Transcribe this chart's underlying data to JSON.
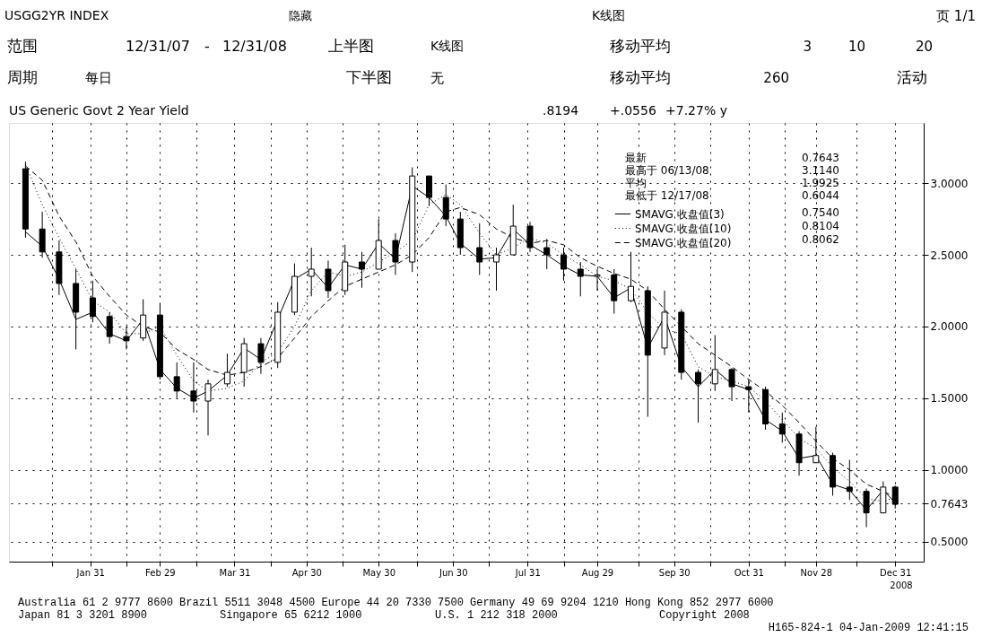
{
  "chart_data": {
    "type": "candlestick",
    "title": "US Generic Govt 2 Year Yield",
    "x": [
      "2008-01-04",
      "2008-01-11",
      "2008-01-18",
      "2008-01-25",
      "2008-02-01",
      "2008-02-08",
      "2008-02-15",
      "2008-02-22",
      "2008-02-29",
      "2008-03-07",
      "2008-03-14",
      "2008-03-20",
      "2008-03-28",
      "2008-04-04",
      "2008-04-11",
      "2008-04-18",
      "2008-04-25",
      "2008-05-02",
      "2008-05-09",
      "2008-05-16",
      "2008-05-23",
      "2008-05-30",
      "2008-06-06",
      "2008-06-13",
      "2008-06-20",
      "2008-06-27",
      "2008-07-03",
      "2008-07-11",
      "2008-07-18",
      "2008-07-25",
      "2008-08-01",
      "2008-08-08",
      "2008-08-15",
      "2008-08-22",
      "2008-08-29",
      "2008-09-05",
      "2008-09-12",
      "2008-09-19",
      "2008-09-26",
      "2008-10-03",
      "2008-10-10",
      "2008-10-17",
      "2008-10-24",
      "2008-10-31",
      "2008-11-07",
      "2008-11-14",
      "2008-11-21",
      "2008-11-28",
      "2008-12-05",
      "2008-12-12",
      "2008-12-19",
      "2008-12-26",
      "2008-12-31"
    ],
    "ohlc": [
      [
        3.1,
        3.15,
        2.62,
        2.68
      ],
      [
        2.68,
        2.8,
        2.48,
        2.52
      ],
      [
        2.52,
        2.6,
        2.22,
        2.3
      ],
      [
        2.3,
        2.4,
        1.84,
        2.1
      ],
      [
        2.2,
        2.32,
        2.03,
        2.07
      ],
      [
        2.07,
        2.1,
        1.88,
        1.93
      ],
      [
        1.93,
        2.0,
        1.84,
        1.9
      ],
      [
        1.92,
        2.19,
        1.9,
        2.08
      ],
      [
        2.08,
        2.16,
        1.63,
        1.65
      ],
      [
        1.65,
        1.75,
        1.5,
        1.55
      ],
      [
        1.55,
        1.75,
        1.4,
        1.48
      ],
      [
        1.48,
        1.63,
        1.24,
        1.6
      ],
      [
        1.6,
        1.81,
        1.58,
        1.68
      ],
      [
        1.68,
        1.92,
        1.58,
        1.88
      ],
      [
        1.88,
        1.92,
        1.67,
        1.75
      ],
      [
        1.75,
        2.17,
        1.71,
        2.1
      ],
      [
        2.1,
        2.44,
        2.08,
        2.35
      ],
      [
        2.35,
        2.55,
        2.21,
        2.4
      ],
      [
        2.4,
        2.46,
        2.2,
        2.25
      ],
      [
        2.25,
        2.57,
        2.22,
        2.45
      ],
      [
        2.45,
        2.52,
        2.27,
        2.4
      ],
      [
        2.4,
        2.75,
        2.4,
        2.6
      ],
      [
        2.6,
        2.65,
        2.36,
        2.45
      ],
      [
        2.45,
        3.11,
        2.38,
        3.05
      ],
      [
        3.05,
        3.05,
        2.84,
        2.9
      ],
      [
        2.9,
        2.99,
        2.7,
        2.75
      ],
      [
        2.75,
        2.8,
        2.5,
        2.55
      ],
      [
        2.55,
        2.72,
        2.36,
        2.45
      ],
      [
        2.45,
        2.55,
        2.25,
        2.5
      ],
      [
        2.5,
        2.85,
        2.5,
        2.7
      ],
      [
        2.7,
        2.73,
        2.52,
        2.55
      ],
      [
        2.55,
        2.61,
        2.4,
        2.5
      ],
      [
        2.5,
        2.55,
        2.32,
        2.4
      ],
      [
        2.4,
        2.45,
        2.21,
        2.35
      ],
      [
        2.35,
        2.4,
        2.25,
        2.36
      ],
      [
        2.36,
        2.4,
        2.09,
        2.18
      ],
      [
        2.18,
        2.52,
        2.17,
        2.28
      ],
      [
        2.25,
        2.28,
        1.37,
        1.8
      ],
      [
        1.85,
        2.25,
        1.8,
        2.1
      ],
      [
        2.1,
        2.12,
        1.63,
        1.68
      ],
      [
        1.68,
        1.7,
        1.33,
        1.6
      ],
      [
        1.6,
        1.94,
        1.55,
        1.7
      ],
      [
        1.7,
        1.71,
        1.48,
        1.58
      ],
      [
        1.58,
        1.63,
        1.4,
        1.56
      ],
      [
        1.56,
        1.58,
        1.28,
        1.32
      ],
      [
        1.32,
        1.4,
        1.19,
        1.25
      ],
      [
        1.25,
        1.27,
        0.96,
        1.05
      ],
      [
        1.05,
        1.3,
        1.05,
        1.1
      ],
      [
        1.1,
        1.12,
        0.82,
        0.88
      ],
      [
        0.88,
        1.07,
        0.79,
        0.85
      ],
      [
        0.85,
        0.87,
        0.6,
        0.7
      ],
      [
        0.7,
        0.92,
        0.7,
        0.88
      ],
      [
        0.88,
        0.89,
        0.73,
        0.76
      ]
    ],
    "color": "#000000",
    "series": [
      {
        "name": "SMAVG 收盘值(3)",
        "type": "line",
        "color": "#000000",
        "line_style": "solid",
        "values": [
          2.66,
          2.56,
          2.33,
          2.05,
          2.1,
          1.95,
          1.9,
          2.05,
          1.7,
          1.57,
          1.5,
          1.55,
          1.66,
          1.85,
          1.77,
          2.05,
          2.33,
          2.4,
          2.27,
          2.43,
          2.4,
          2.58,
          2.47,
          2.98,
          2.9,
          2.77,
          2.58,
          2.47,
          2.48,
          2.68,
          2.57,
          2.5,
          2.42,
          2.36,
          2.35,
          2.2,
          2.27,
          1.85,
          2.07,
          1.72,
          1.58,
          1.7,
          1.6,
          1.56,
          1.35,
          1.27,
          1.08,
          1.1,
          0.9,
          0.86,
          0.72,
          0.86,
          0.77
        ]
      },
      {
        "name": "SMAVG 收盘值(10)",
        "type": "line",
        "color": "#000000",
        "line_style": "dotted",
        "values": [
          3.13,
          2.85,
          2.62,
          2.4,
          2.18,
          2.1,
          1.95,
          1.95,
          2.0,
          1.8,
          1.62,
          1.55,
          1.57,
          1.62,
          1.75,
          1.82,
          2.0,
          2.25,
          2.38,
          2.35,
          2.38,
          2.45,
          2.52,
          2.6,
          2.85,
          2.92,
          2.85,
          2.65,
          2.5,
          2.55,
          2.62,
          2.58,
          2.5,
          2.43,
          2.35,
          2.32,
          2.26,
          2.1,
          1.98,
          1.95,
          1.72,
          1.65,
          1.62,
          1.58,
          1.48,
          1.35,
          1.22,
          1.15,
          1.02,
          0.92,
          0.8,
          0.78,
          0.81
        ]
      },
      {
        "name": "SMAVG 收盘值(20)",
        "type": "line",
        "color": "#000000",
        "line_style": "dashed",
        "values": [
          3.12,
          3.02,
          2.77,
          2.59,
          2.35,
          2.21,
          2.08,
          2.0,
          1.96,
          1.84,
          1.77,
          1.7,
          1.66,
          1.68,
          1.72,
          1.78,
          1.92,
          2.07,
          2.18,
          2.28,
          2.33,
          2.38,
          2.43,
          2.5,
          2.62,
          2.8,
          2.83,
          2.78,
          2.68,
          2.62,
          2.58,
          2.6,
          2.57,
          2.48,
          2.42,
          2.37,
          2.33,
          2.25,
          2.12,
          2.0,
          1.88,
          1.8,
          1.72,
          1.63,
          1.55,
          1.45,
          1.33,
          1.2,
          1.08,
          1.0,
          0.9,
          0.85,
          0.81
        ]
      }
    ],
    "xlim": [
      "2007-12-30",
      "2009-01-10"
    ],
    "xticks": [
      {
        "value": "2008-01-15",
        "label": null
      },
      {
        "value": "2008-01-31",
        "label": "Jan 31"
      },
      {
        "value": "2008-02-15",
        "label": null
      },
      {
        "value": "2008-02-29",
        "label": "Feb 29"
      },
      {
        "value": "2008-03-15",
        "label": null
      },
      {
        "value": "2008-03-31",
        "label": "Mar 31"
      },
      {
        "value": "2008-04-15",
        "label": null
      },
      {
        "value": "2008-04-30",
        "label": "Apr 30"
      },
      {
        "value": "2008-05-15",
        "label": null
      },
      {
        "value": "2008-05-30",
        "label": "May 30"
      },
      {
        "value": "2008-06-15",
        "label": null
      },
      {
        "value": "2008-06-30",
        "label": "Jun 30"
      },
      {
        "value": "2008-07-15",
        "label": null
      },
      {
        "value": "2008-07-31",
        "label": "Jul 31"
      },
      {
        "value": "2008-08-15",
        "label": null
      },
      {
        "value": "2008-08-29",
        "label": "Aug 29"
      },
      {
        "value": "2008-09-15",
        "label": null
      },
      {
        "value": "2008-09-30",
        "label": "Sep 30"
      },
      {
        "value": "2008-10-15",
        "label": null
      },
      {
        "value": "2008-10-31",
        "label": "Oct 31"
      },
      {
        "value": "2008-11-15",
        "label": null
      },
      {
        "value": "2008-11-28",
        "label": "Nov 28"
      },
      {
        "value": "2008-12-15",
        "label": null
      },
      {
        "value": "2008-12-31",
        "label": "Dec 31"
      }
    ],
    "ylim": [
      0.36,
      3.42
    ],
    "yticks": [
      {
        "value": 0.5,
        "label": "0.5000"
      },
      {
        "value": 0.7643,
        "label": "0.7643"
      },
      {
        "value": 1.0,
        "label": "1.0000"
      },
      {
        "value": 1.5,
        "label": "1.5000"
      },
      {
        "value": 2.0,
        "label": "2.0000"
      },
      {
        "value": 2.5,
        "label": "2.5000"
      },
      {
        "value": 3.0,
        "label": "3.0000"
      }
    ],
    "grid": true,
    "legend": "top right",
    "annotations": [
      "USGG2YR INDEX",
      "隐藏",
      "K线图",
      "页 1/1",
      "范围",
      "12/31/07",
      "-",
      "12/31/08",
      "上半图",
      "K线图",
      "移动平均",
      "3",
      "10",
      "20",
      "周期",
      "每日",
      "下半图",
      "无",
      "移动平均",
      "260",
      "活动",
      ".8194",
      "+.0556",
      "+7.27% y",
      "最新",
      "0.7643",
      "最高于 06/13/08",
      "3.1140",
      "平均",
      "1.9925",
      "最低于 12/17/08",
      "0.6044",
      "0.7540",
      "0.8104",
      "0.8062",
      "2008",
      "Australia 61 2 9777 8600 Brazil 5511 3048 4500 Europe 44 20 7330 7500 Germany 49 69 9204 1210 Hong Kong 852 2977 6000",
      "Japan 81 3 3201 8900",
      "Singapore 65 6212 1000",
      "U.S. 1 212 318 2000",
      "Copyright 2008",
      "H165-824-1 04-Jan-2009 12:41:15"
    ]
  }
}
